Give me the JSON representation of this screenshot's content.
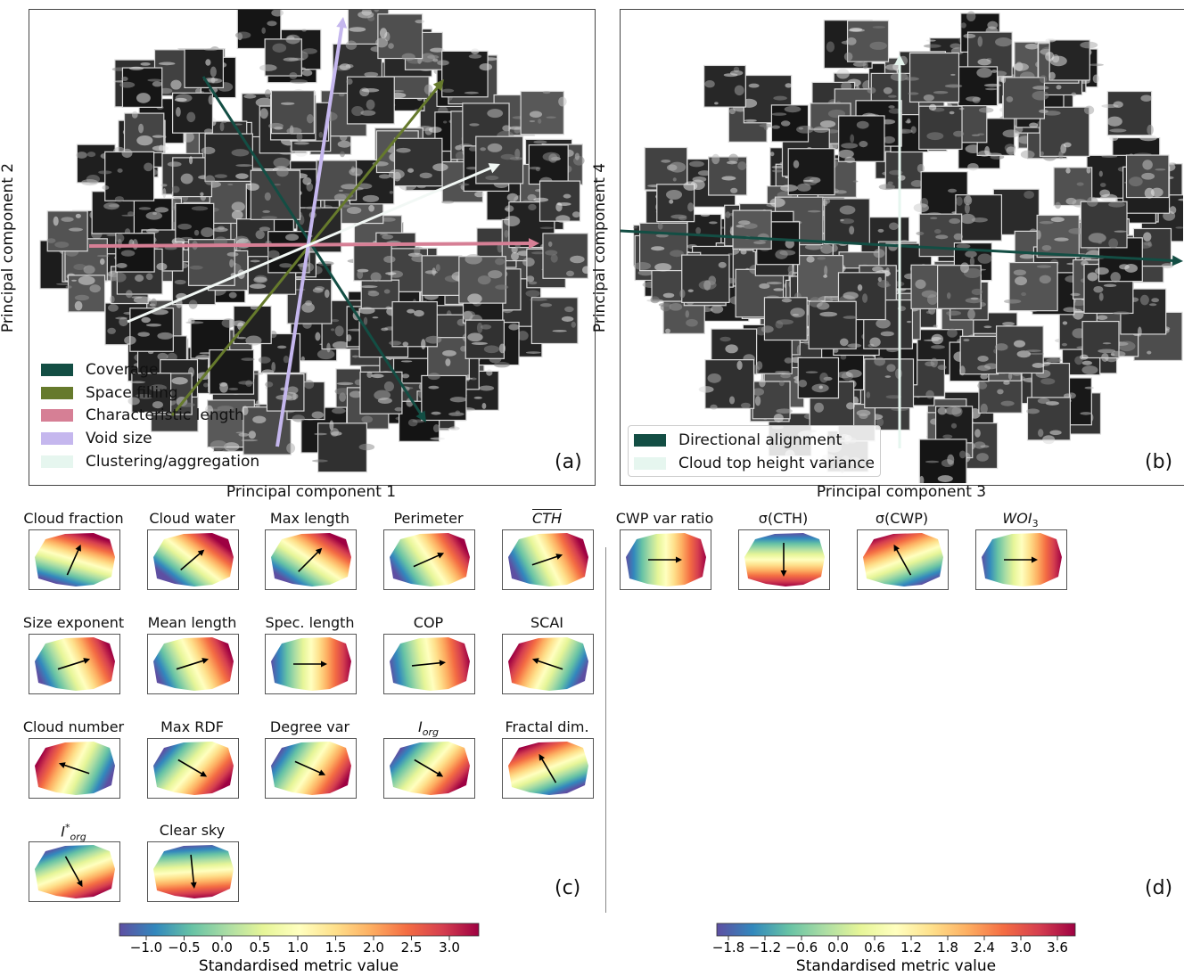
{
  "panel_a": {
    "tag": "(a)",
    "xlabel": "Principal component 1",
    "ylabel": "Principal component 2",
    "legend": [
      {
        "label": "Coverage",
        "color": "#134e44"
      },
      {
        "label": "Space filling",
        "color": "#667a2c"
      },
      {
        "label": "Characteristic length",
        "color": "#d67f95"
      },
      {
        "label": "Void size",
        "color": "#c5b7ee"
      },
      {
        "label": "Clustering/aggregation",
        "color": "#e6f6ef"
      }
    ]
  },
  "panel_b": {
    "tag": "(b)",
    "xlabel": "Principal component 3",
    "ylabel": "Principal component 4",
    "legend": [
      {
        "label": "Directional alignment",
        "color": "#134e44"
      },
      {
        "label": "Cloud top height variance",
        "color": "#e6f6ef"
      }
    ]
  },
  "panel_c": {
    "tag": "(c)",
    "maps": [
      {
        "title": "Cloud fraction",
        "arrow": [
          -0.4,
          -0.9
        ]
      },
      {
        "title": "Cloud water",
        "arrow": [
          -0.7,
          -0.6
        ]
      },
      {
        "title": "Max length",
        "arrow": [
          -0.7,
          -0.7
        ]
      },
      {
        "title": "Perimeter",
        "arrow": [
          -0.9,
          -0.4
        ]
      },
      {
        "title": "CTH",
        "arrow": [
          -0.9,
          -0.3
        ]
      },
      {
        "title": "Size exponent",
        "arrow": [
          -0.95,
          -0.3
        ]
      },
      {
        "title": "Mean length",
        "arrow": [
          -0.95,
          -0.3
        ]
      },
      {
        "title": "Spec. length",
        "arrow": [
          -1.0,
          0.0
        ]
      },
      {
        "title": "COP",
        "arrow": [
          -1.0,
          -0.1
        ]
      },
      {
        "title": "SCAI",
        "arrow": [
          0.9,
          -0.3
        ]
      },
      {
        "title": "Cloud number",
        "arrow": [
          0.9,
          -0.3
        ]
      },
      {
        "title": "Max RDF",
        "arrow": [
          -0.85,
          0.5
        ]
      },
      {
        "title": "Degree var",
        "arrow": [
          -0.9,
          0.4
        ]
      },
      {
        "title": "I",
        "sub": "org",
        "arrow": [
          -0.85,
          0.5
        ]
      },
      {
        "title": "Fractal dim.",
        "arrow": [
          0.5,
          -0.85
        ]
      },
      {
        "title": "I",
        "sub": "org",
        "sup": "*",
        "arrow": [
          -0.5,
          0.9
        ]
      },
      {
        "title": "Clear sky",
        "arrow": [
          -0.1,
          1.0
        ]
      }
    ],
    "colorbar": {
      "label": "Standardised metric value",
      "ticks": [
        "−1.0",
        "−0.5",
        "0.0",
        "0.5",
        "1.0",
        "1.5",
        "2.0",
        "2.5",
        "3.0"
      ]
    }
  },
  "panel_d": {
    "tag": "(d)",
    "maps": [
      {
        "title": "CWP var ratio",
        "arrow": [
          -1.0,
          0.0
        ]
      },
      {
        "title": "σ(CTH)",
        "arrow": [
          0.0,
          1.0
        ]
      },
      {
        "title": "σ(CWP)",
        "arrow": [
          0.5,
          -0.9
        ]
      },
      {
        "title": "WOI",
        "sub": "3",
        "arrow": [
          -1.0,
          0.0
        ]
      }
    ],
    "colorbar": {
      "label": "Standardised metric value",
      "ticks": [
        "−1.8",
        "−1.2",
        "−0.6",
        "0.0",
        "0.6",
        "1.2",
        "1.8",
        "2.4",
        "3.0",
        "3.6"
      ]
    }
  }
}
